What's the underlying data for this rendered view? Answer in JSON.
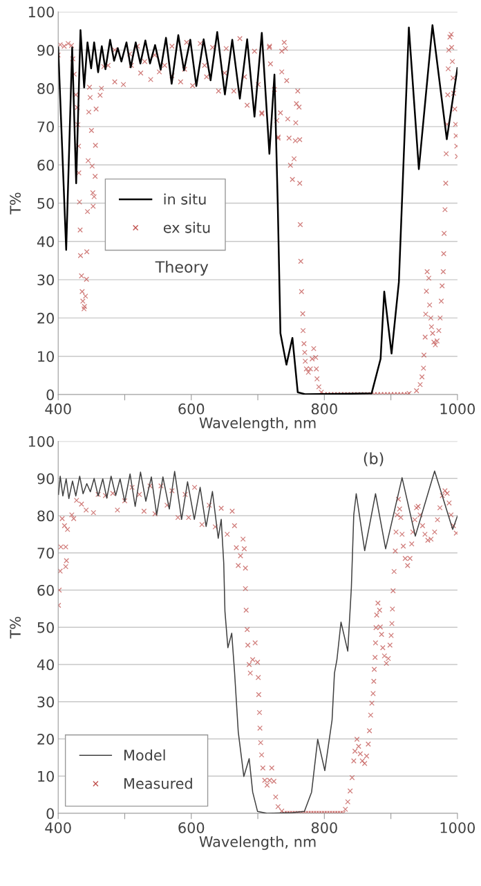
{
  "chart_data": [
    {
      "type": "line",
      "xlabel": "Wavelength, nm",
      "ylabel": "T%",
      "xlim": [
        400,
        1000
      ],
      "ylim": [
        0,
        100
      ],
      "xticks": [
        400,
        {
          "value": 500,
          "label": null
        },
        600,
        {
          "value": 700,
          "label": null
        },
        800,
        {
          "value": 900,
          "label": null
        },
        1000
      ],
      "yticks": [
        0,
        10,
        20,
        30,
        40,
        50,
        60,
        70,
        80,
        90,
        100
      ],
      "grid": "y",
      "legend": "center left",
      "annotations": [
        "Theory"
      ],
      "series": [
        {
          "name": "in situ",
          "color": "#000000",
          "line_style": "solid",
          "marker": "none",
          "x": [
            400,
            412,
            421,
            427,
            433.5,
            439,
            444,
            449.5,
            454,
            460,
            465.5,
            471,
            478,
            484,
            489.5,
            495,
            502.6,
            509,
            516.5,
            523.5,
            531,
            538,
            545.6,
            554,
            562,
            570.5,
            580.5,
            589,
            598.5,
            607.6,
            618.6,
            629,
            639,
            650.5,
            661.6,
            673,
            684,
            695,
            706,
            717.4,
            725,
            730,
            734,
            743,
            752,
            760,
            771,
            871,
            884.5,
            890,
            901,
            912,
            919.5,
            927,
            942,
            962.5,
            984,
            1000
          ],
          "values": [
            90.7,
            37.8,
            90.7,
            55.2,
            95.2,
            80.2,
            92,
            85.2,
            92,
            84.2,
            91,
            85,
            92.7,
            87.2,
            90.5,
            87,
            92,
            85.5,
            92,
            86.5,
            92.5,
            86.5,
            91.3,
            84.9,
            93.2,
            81.2,
            93.9,
            84.7,
            92.7,
            80.6,
            92.8,
            82.1,
            94.7,
            78.4,
            92.7,
            77.3,
            92.8,
            72.6,
            94.5,
            62.9,
            83.6,
            49.5,
            16,
            7.8,
            14.8,
            0.6,
            0.1,
            0.3,
            9.3,
            26.9,
            10.7,
            29.4,
            63,
            95.9,
            58.9,
            96.5,
            66.7,
            85.3
          ]
        },
        {
          "name": "ex situ",
          "type": "scatter",
          "color": "#c0504d",
          "marker": "cross",
          "x": [
            400,
            403,
            409,
            415,
            420,
            422,
            424,
            426.5,
            428.7,
            429.5,
            430.6,
            431,
            432,
            433,
            433.5,
            435,
            436,
            437,
            438.8,
            439.5,
            441,
            442.5,
            443,
            444,
            445,
            446,
            448,
            447,
            450,
            451,
            452,
            452.5,
            454,
            455.5,
            456,
            457,
            463,
            465,
            468.5,
            485,
            498,
            524,
            539,
            552,
            571,
            584,
            602,
            623,
            641,
            664,
            684,
            706,
            730.6,
            485,
            507.5,
            519,
            545,
            571,
            593,
            613.5,
            632,
            652.5,
            673,
            695,
            717.6,
            736,
            475,
            510,
            530,
            560,
            590,
            620,
            650,
            680,
            700.6,
            706,
            717.3,
            719,
            725,
            728.5,
            730.4,
            734,
            736,
            739.7,
            741.5,
            743.4,
            745,
            747,
            749,
            752,
            754.5,
            756.4,
            757,
            758,
            760,
            762,
            763,
            763,
            763.8,
            764.6,
            765.7,
            767.5,
            768,
            769.4,
            770.5,
            771.3,
            773,
            776,
            779,
            781.7,
            784,
            787,
            788,
            789,
            791.7,
            795.4,
            800,
            805,
            810,
            815,
            820,
            825,
            830,
            835,
            840,
            845,
            850,
            855,
            860,
            865,
            870,
            875,
            880,
            885,
            890,
            895,
            900,
            905,
            910,
            915,
            920,
            925,
            927.4,
            938.5,
            944,
            946.7,
            949,
            949.7,
            951.5,
            952.3,
            953.4,
            954.5,
            957,
            958.2,
            960,
            961,
            962.7,
            964.6,
            966.8,
            969.4,
            972,
            974,
            975.7,
            977,
            978.7,
            979.4,
            980,
            981.3,
            982.4,
            983.1,
            984.3,
            985.4,
            986.1,
            987,
            988.7,
            990.6,
            991.3,
            992.4,
            993.5,
            994.3,
            996,
            997.3,
            998,
            999,
            1000
          ],
          "values": [
            88.7,
            91.4,
            91,
            91.7,
            91.2,
            87.7,
            83.7,
            78.3,
            75,
            70.5,
            64.9,
            57.9,
            50.3,
            43,
            36.3,
            31,
            26.9,
            24.4,
            22.4,
            23,
            25.7,
            30.1,
            37.3,
            47.8,
            61.1,
            73.8,
            77.6,
            80.3,
            69,
            59.7,
            52.7,
            49.2,
            51.7,
            57,
            65.1,
            74.6,
            78.2,
            80,
            85.7,
            81.7,
            81,
            84,
            82.3,
            84.3,
            83.3,
            81.7,
            80.7,
            83,
            79.3,
            79.3,
            75.6,
            73.3,
            67.3,
            90,
            89,
            91,
            88.7,
            91,
            92,
            91.7,
            90.7,
            90.4,
            93,
            89.7,
            91,
            89.7,
            86,
            86,
            87,
            86,
            85,
            86,
            84,
            83,
            81,
            73.6,
            90.7,
            86.4,
            79.7,
            71.6,
            67,
            73.6,
            84.3,
            92,
            90.4,
            82,
            72,
            67,
            59.9,
            56.2,
            61.6,
            66.3,
            71,
            76,
            79.3,
            75.1,
            66.6,
            55.2,
            44.4,
            34.8,
            26.9,
            21.1,
            16.7,
            13.3,
            11,
            8.7,
            6.7,
            5.8,
            6.7,
            9.3,
            12,
            9.7,
            6.7,
            4.1,
            2,
            0.6,
            0,
            0,
            0,
            0,
            0,
            0,
            0,
            0,
            0,
            0,
            0,
            0,
            0,
            0,
            0,
            0,
            0,
            0,
            0,
            0,
            0,
            0,
            0,
            0,
            0,
            0,
            0.3,
            1,
            2.6,
            4.6,
            6.9,
            10.3,
            15,
            21,
            27,
            32.1,
            30.4,
            23.4,
            20,
            17.7,
            16,
            13.7,
            13,
            14,
            16.7,
            20,
            24.4,
            28.4,
            32.1,
            36.8,
            42.1,
            48.3,
            55.2,
            62.9,
            70.6,
            78.3,
            85.1,
            90,
            93.4,
            94.1,
            90.7,
            87,
            82.7,
            78.7,
            74.6,
            70.6,
            67.6,
            64.9,
            62.2
          ]
        }
      ]
    },
    {
      "type": "line",
      "xlabel": "Wavelength, nm",
      "ylabel": "T%",
      "xlim": [
        400,
        1000
      ],
      "ylim": [
        0,
        100
      ],
      "xticks": [
        400,
        {
          "value": 500,
          "label": null
        },
        600,
        {
          "value": 700,
          "label": null
        },
        800,
        {
          "value": 900,
          "label": null
        },
        1000
      ],
      "yticks": [
        0,
        10,
        20,
        30,
        40,
        50,
        60,
        70,
        80,
        90,
        100
      ],
      "grid": "y",
      "legend": "lower left",
      "annotations": [
        "(b)"
      ],
      "series": [
        {
          "name": "Model",
          "color": "#404040",
          "line_style": "solid",
          "marker": "none",
          "x": [
            400.4,
            403,
            407,
            412,
            416,
            421.5,
            426.5,
            432.3,
            437.4,
            443,
            448.3,
            454,
            460,
            467,
            473,
            479.5,
            486.4,
            493,
            500,
            508,
            515.7,
            523.7,
            531.7,
            540,
            548,
            557.4,
            567,
            575,
            585.4,
            594.4,
            604.6,
            613.3,
            622.3,
            631.8,
            640.5,
            645,
            648.8,
            650.6,
            655,
            660.8,
            665,
            670.6,
            679,
            687,
            692.3,
            699.6,
            714,
            751.8,
            770,
            780.8,
            790,
            800.7,
            811.6,
            815.2,
            818.9,
            825,
            835.2,
            840.6,
            844.2,
            847.9,
            860.6,
            876.9,
            892.1,
            916.8,
            936.7,
            965.7,
            992.9,
            1000
          ],
          "values": [
            85.7,
            90.6,
            85.3,
            89.9,
            84.6,
            89.3,
            85.3,
            90.6,
            85.9,
            88.6,
            86.4,
            90,
            85.3,
            89.9,
            84.7,
            90.6,
            85.4,
            89.9,
            83.8,
            91.2,
            82.5,
            91.7,
            83.9,
            90.4,
            80.2,
            90.4,
            81.8,
            91.9,
            79,
            89.1,
            79,
            87.6,
            77.1,
            86.5,
            73.9,
            79,
            67.2,
            54.3,
            44.5,
            48.4,
            38.1,
            21.9,
            9.9,
            14.7,
            5.7,
            0.5,
            0,
            0.2,
            0.5,
            5.7,
            19.9,
            11.5,
            25.1,
            37.7,
            41.3,
            51.4,
            43.6,
            60.7,
            80.2,
            85.9,
            70.6,
            85.9,
            71.1,
            90.2,
            74.5,
            92,
            76.3,
            79.9
          ]
        },
        {
          "name": "Measured",
          "type": "scatter",
          "color": "#c0504d",
          "marker": "cross",
          "x": [
            400.4,
            401.5,
            403,
            404,
            406,
            409.5,
            411.3,
            412.4,
            411.3,
            414,
            420.4,
            423.3,
            427.6,
            435,
            442,
            453,
            460,
            471,
            482,
            489,
            500,
            511,
            522,
            529,
            538,
            545.5,
            554.5,
            563.6,
            571,
            580,
            590.8,
            596,
            605,
            616,
            627,
            636,
            645,
            654,
            661.5,
            665,
            667.7,
            670.6,
            674,
            677.8,
            679.6,
            681.4,
            681.4,
            682.5,
            684,
            685,
            687,
            688.7,
            692.3,
            696,
            699.6,
            700.7,
            701.4,
            702.5,
            703.2,
            704.3,
            705.7,
            707.6,
            710.4,
            714,
            717.7,
            721,
            724.2,
            726.8,
            730.4,
            736,
            740,
            744,
            748,
            752,
            756,
            760,
            764,
            768,
            772,
            776,
            780,
            784,
            788,
            792,
            796,
            800,
            804,
            808,
            812,
            816,
            820,
            824,
            828,
            831.6,
            835.2,
            838.8,
            841.7,
            844.2,
            846,
            849,
            851.5,
            854,
            857,
            860.6,
            863.5,
            866,
            867.8,
            869.6,
            871.4,
            873.3,
            874.3,
            875,
            876.2,
            876.9,
            877.6,
            878.7,
            880.5,
            883,
            884.1,
            886,
            887.8,
            890.3,
            893.2,
            896.1,
            898.6,
            900.4,
            901.5,
            902.3,
            903.3,
            904.8,
            906.6,
            907.7,
            909.5,
            911.3,
            913.1,
            914.9,
            916.8,
            918.6,
            921.5,
            925.1,
            928.7,
            931.3,
            933,
            936,
            938.5,
            941,
            943.9,
            947.6,
            951.2,
            955.5,
            960.3,
            965.7,
            970,
            973.7,
            977.3,
            981.3,
            984.6,
            987.5,
            990.4,
            994,
            998.3
          ],
          "values": [
            55.9,
            60,
            65.1,
            71.6,
            79.2,
            77.3,
            71.6,
            67.9,
            66.3,
            76.3,
            80.2,
            79.2,
            84.1,
            83.1,
            81.5,
            80.8,
            85.7,
            85.4,
            86,
            81.5,
            84,
            87.6,
            85.7,
            81.2,
            88,
            80.5,
            88,
            82.8,
            86.7,
            79.5,
            85.7,
            79.5,
            87.6,
            77.6,
            82.8,
            77,
            82,
            75,
            81.2,
            77.3,
            71.4,
            66.6,
            69.2,
            73.7,
            71.1,
            65.9,
            60.4,
            54.6,
            49.4,
            45.2,
            40,
            37.7,
            41.3,
            45.8,
            40.6,
            36.5,
            31.9,
            27.1,
            22.9,
            19,
            15.7,
            12.2,
            8.9,
            7.6,
            8.9,
            12.2,
            8.6,
            4.4,
            1.8,
            0.6,
            0,
            0,
            0,
            0,
            0,
            0,
            0,
            0,
            0,
            0,
            0,
            0,
            0,
            0,
            0,
            0,
            0,
            0,
            0,
            0,
            0,
            0,
            0,
            1.1,
            3.1,
            6,
            9.6,
            14.1,
            16.7,
            19.9,
            18,
            16,
            14.1,
            13.4,
            15.4,
            18.6,
            22.2,
            26.4,
            29.6,
            32.2,
            35.5,
            38.7,
            41.9,
            45.8,
            49.9,
            53.3,
            56.5,
            54.6,
            50.1,
            48.1,
            44.5,
            42.3,
            40.3,
            41.6,
            45.2,
            47.8,
            51,
            54.9,
            59.8,
            65,
            70.5,
            75.6,
            80.2,
            84.4,
            81.8,
            79.5,
            75,
            71.8,
            68.5,
            66.6,
            68.5,
            72.4,
            75.6,
            78.9,
            82.1,
            82.5,
            80.2,
            77.3,
            75,
            73.4,
            73.7,
            75.6,
            78.9,
            82.1,
            85.4,
            86.7,
            86,
            83.4,
            80.2,
            77.3,
            75.3
          ]
        }
      ]
    }
  ]
}
